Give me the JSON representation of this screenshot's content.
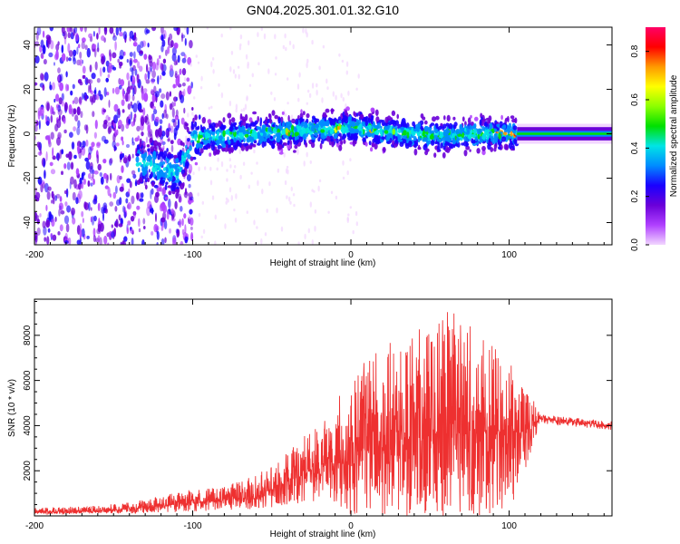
{
  "title": "GN04.2025.301.01.32.G10",
  "chart_data": [
    {
      "type": "heatmap",
      "xlabel": "Height of straight line (km)",
      "ylabel": "Frequency (Hz)",
      "xlim": [
        -200,
        165
      ],
      "ylim": [
        -50,
        48
      ],
      "xticks": [
        -200,
        -100,
        0,
        100
      ],
      "yticks": [
        -40,
        -20,
        0,
        20,
        40
      ],
      "colorbar": {
        "label": "Normalized spectral amplitude",
        "range": [
          0.0,
          0.9
        ],
        "ticks": [
          0.0,
          0.2,
          0.4,
          0.6,
          0.8
        ],
        "tick_labels": [
          "0.0",
          "0.2",
          "0.4",
          "0.6",
          "0.8"
        ],
        "colors": [
          "#f2d6ff",
          "#b040ff",
          "#6a00d9",
          "#1a00ff",
          "#008cff",
          "#00e5e5",
          "#00e000",
          "#8cff00",
          "#ffff00",
          "#ff9900",
          "#ff0000",
          "#ff0066"
        ]
      },
      "features": {
        "noise_region_x": [
          -200,
          -100
        ],
        "signal_track": {
          "x": [
            -130,
            -110,
            -100,
            -80,
            -60,
            -40,
            -20,
            0,
            20,
            40,
            60,
            80,
            100,
            110,
            165
          ],
          "y": [
            -13,
            -18,
            -2,
            -1,
            0,
            1,
            2,
            3,
            1,
            0,
            -1,
            0,
            0,
            0,
            0
          ]
        },
        "peak_x_range": [
          85,
          105
        ]
      }
    },
    {
      "type": "line",
      "xlabel": "Height of straight line (km)",
      "ylabel": "SNR (10 * v/v)",
      "xlim": [
        -200,
        165
      ],
      "ylim": [
        0,
        9600
      ],
      "xticks": [
        -200,
        -100,
        0,
        100
      ],
      "yticks": [
        2000,
        4000,
        6000,
        8000
      ],
      "color": "#ee3030",
      "series": [
        {
          "x": [
            -200,
            -180,
            -160,
            -140,
            -120,
            -100,
            -80,
            -60,
            -40,
            -20,
            0,
            20,
            40,
            60,
            80,
            100,
            110,
            120,
            140,
            165
          ],
          "values": [
            150,
            180,
            200,
            300,
            450,
            600,
            700,
            900,
            1500,
            2200,
            2600,
            3200,
            3400,
            3600,
            3700,
            3800,
            3800,
            4300,
            4150,
            4000
          ],
          "envelope_max": [
            350,
            400,
            450,
            600,
            900,
            1200,
            1300,
            1800,
            2800,
            4200,
            6300,
            7500,
            8200,
            9500,
            8200,
            7000,
            6000,
            4500,
            4350,
            4200
          ],
          "envelope_min": [
            80,
            80,
            100,
            100,
            150,
            200,
            250,
            300,
            400,
            500,
            0,
            0,
            0,
            0,
            0,
            200,
            2000,
            4100,
            3950,
            3800
          ]
        }
      ]
    }
  ]
}
